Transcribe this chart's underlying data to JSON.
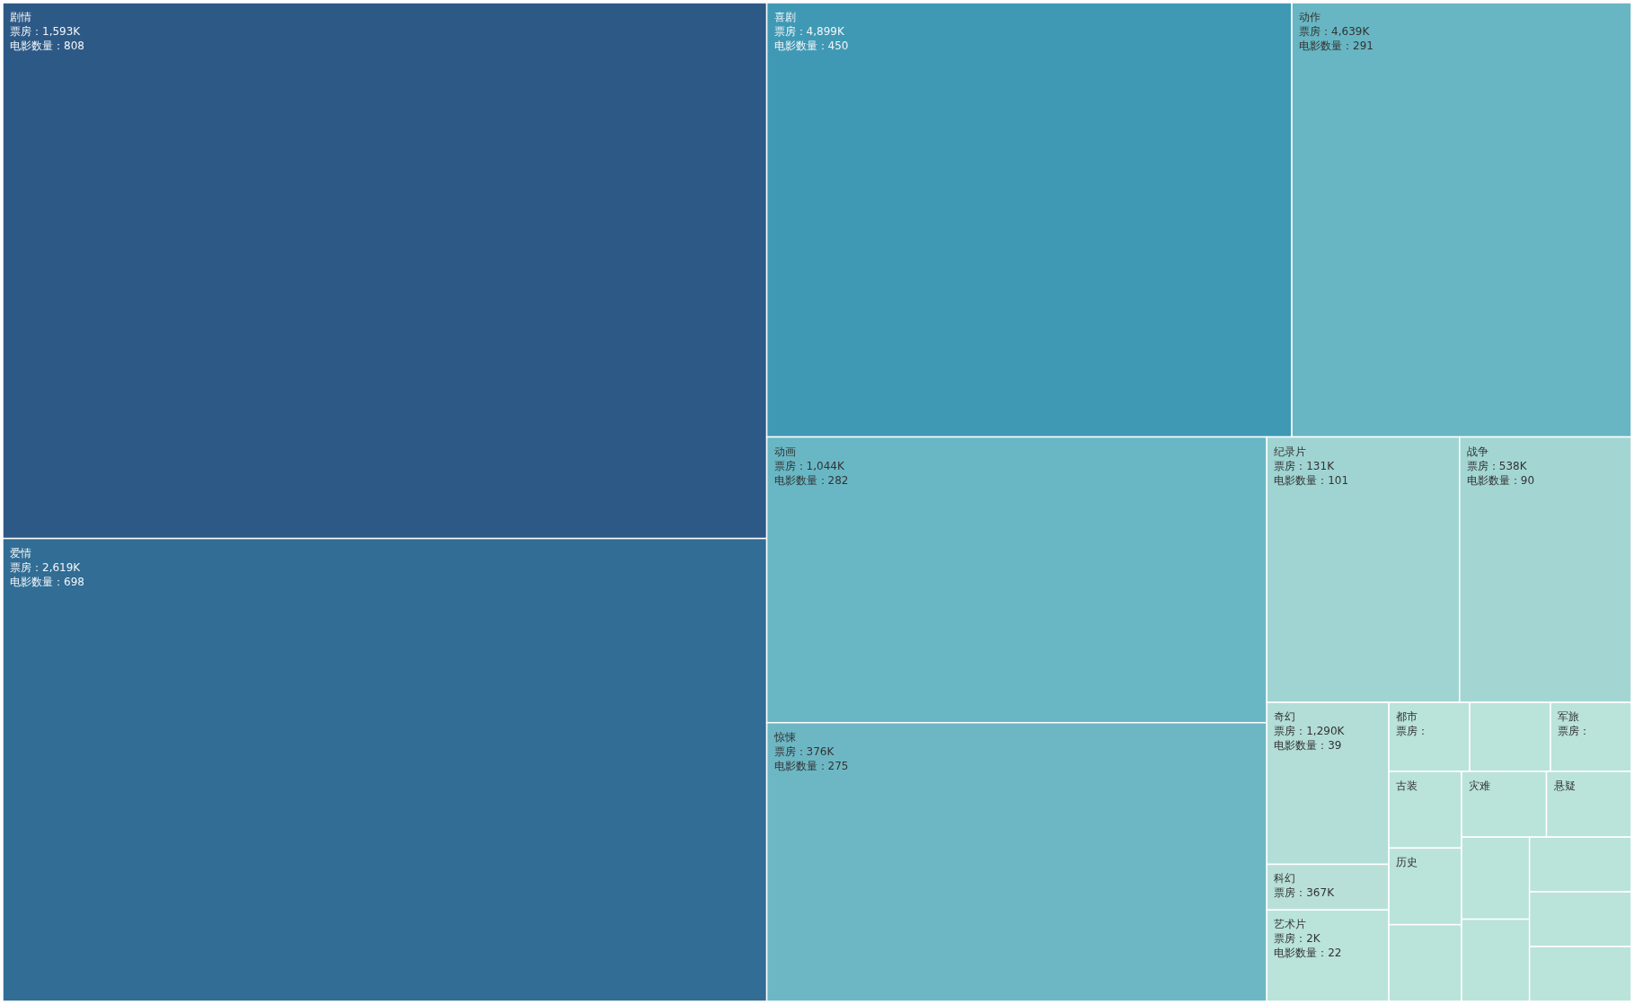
{
  "chart_data": {
    "type": "other",
    "categories": [
      "剧情",
      "爱情",
      "喜剧",
      "动作",
      "动画",
      "惊悚",
      "纪录片",
      "战争",
      "奇幻",
      "科幻",
      "艺术片",
      "都市",
      null,
      "军旅",
      "古装",
      "历史",
      null,
      "灾难",
      "悬疑",
      null,
      null,
      null,
      null,
      null
    ],
    "values": [
      808,
      698,
      450,
      291,
      282,
      275,
      101,
      90,
      39,
      null,
      22,
      null,
      null,
      null,
      null,
      null,
      null,
      null,
      null,
      null,
      null,
      null,
      null,
      null
    ],
    "value_labels": [
      "票房：1,593K\n电影数量：808",
      "票房：2,619K\n电影数量：698",
      "票房：4,899K\n电影数量：450",
      "票房：4,639K\n电影数量：291",
      "票房：1,044K\n电影数量：282",
      "票房：376K\n电影数量：275",
      "票房：131K\n电影数量：101",
      "票房：538K\n电影数量：90",
      "票房：1,290K\n电影数量：39",
      "票房：367K",
      "票房：2K\n电影数量：22",
      "票房：",
      null,
      "票房：",
      null,
      null,
      null,
      null,
      null,
      null,
      null,
      null,
      null,
      null
    ],
    "colors": [
      "#2d5986",
      "#316d94",
      "#3f99b4",
      "#68b6c3",
      "#69b7c4",
      "#6db7c4",
      "#9fd4d2",
      "#a3d6d3",
      "#b3ddd7",
      "#b8e0d9",
      "#bae3da",
      "#bae3da",
      "#bae3da",
      "#bae3da",
      "#bae3da",
      "#bae3da",
      "#bae3da",
      "#bae3da",
      "#bae3da",
      "#bae3da",
      "#bae3da",
      "#bae3da",
      "#bae3da",
      "#bae3da"
    ]
  }
}
